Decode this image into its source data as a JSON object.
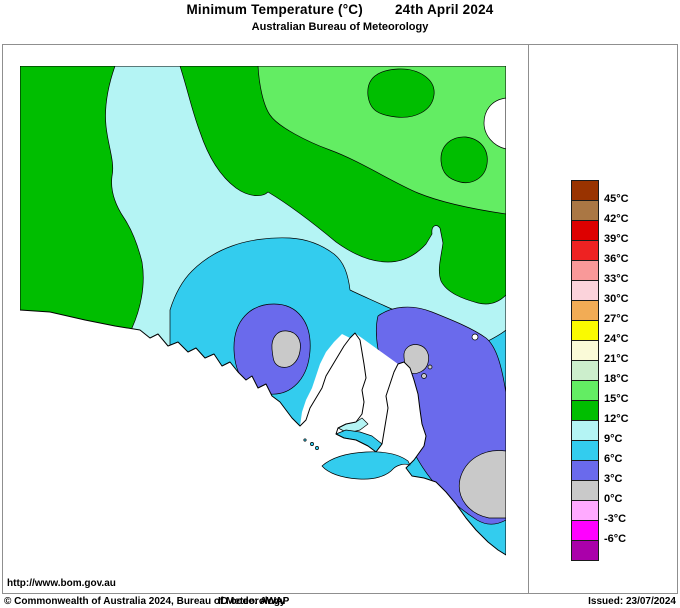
{
  "header": {
    "title": "Minimum Temperature (°C)",
    "date": "24th April 2024",
    "subtitle": "Australian Bureau of Meteorology"
  },
  "legend": {
    "labels": [
      "45°C",
      "42°C",
      "39°C",
      "36°C",
      "33°C",
      "30°C",
      "27°C",
      "24°C",
      "21°C",
      "18°C",
      "15°C",
      "12°C",
      "9°C",
      "6°C",
      "3°C",
      "0°C",
      "-3°C",
      "-6°C"
    ],
    "colors": [
      "#993300",
      "#AA7744",
      "#DD0000",
      "#EE2222",
      "#F99999",
      "#FBD3DB",
      "#F2AC55",
      "#FAFA00",
      "#FAFAD8",
      "#CCEECC",
      "#63ED63",
      "#00BE00",
      "#B4F4F4",
      "#33CCEE",
      "#6A6AEC",
      "#C9C9C9",
      "#FFAAFF",
      "#FF00FF",
      "#AA00AA"
    ]
  },
  "map": {
    "palette": {
      "green": "#00BE00",
      "light_green": "#63ED63",
      "pale_cyan": "#B4F4F4",
      "cyan": "#33CCEE",
      "blue": "#6A6AEC",
      "gray": "#C9C9C9",
      "ocean": "#FFFFFF"
    }
  },
  "footer": {
    "url": "http://www.bom.gov.au",
    "copyright": "© Commonwealth of Australia 2024, Bureau of Meteorology",
    "id_code": "ID code: AWAP",
    "issued": "Issued: 23/07/2024"
  }
}
